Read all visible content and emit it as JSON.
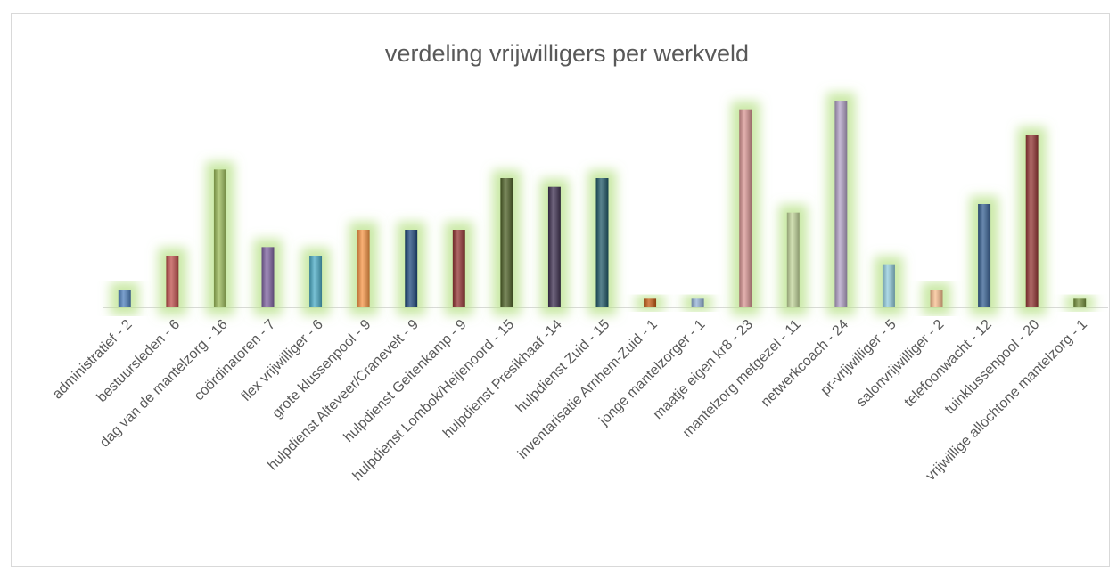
{
  "chart_data": {
    "type": "bar",
    "title": "verdeling vrijwilligers per werkveld",
    "categories": [
      "administratief - 2",
      "bestuursleden - 6",
      "dag van de mantelzorg - 16",
      "coördinatoren - 7",
      "flex vrijwilliger - 6",
      "grote klussenpool - 9",
      "hulpdienst Alteveer/Cranevelt - 9",
      "hulpdienst Geitenkamp - 9",
      "hulpdienst Lombok/Heijenoord - 15",
      "hulpdienst Presikhaaf -14",
      "hulpdienst Zuid - 15",
      "inventarisatie Arnhem-Zuid - 1",
      "jonge mantelzorger - 1",
      "maatje eigen kr8 - 23",
      "mantelzorg metgezel - 11",
      "netwerkcoach - 24",
      "pr-vrijwilliger - 5",
      "salonvrijwilliger - 2",
      "telefoonwacht - 12",
      "tuinklussenpool - 20",
      "vrijwillige allochtone mantelzorg - 1"
    ],
    "values": [
      2,
      6,
      16,
      7,
      6,
      9,
      9,
      9,
      15,
      14,
      15,
      1,
      1,
      23,
      11,
      24,
      5,
      2,
      12,
      20,
      1
    ],
    "colors": [
      "#4f81bd",
      "#c0504d",
      "#9bbb59",
      "#8064a2",
      "#4bacc6",
      "#f79646",
      "#1f497d",
      "#943634",
      "#4f6228",
      "#3f3151",
      "#215968",
      "#c55a11",
      "#95b3d7",
      "#d99694",
      "#c3d69b",
      "#b3a2c7",
      "#93cddd",
      "#fac090",
      "#366092",
      "#953735",
      "#76923c"
    ],
    "grid": false
  }
}
